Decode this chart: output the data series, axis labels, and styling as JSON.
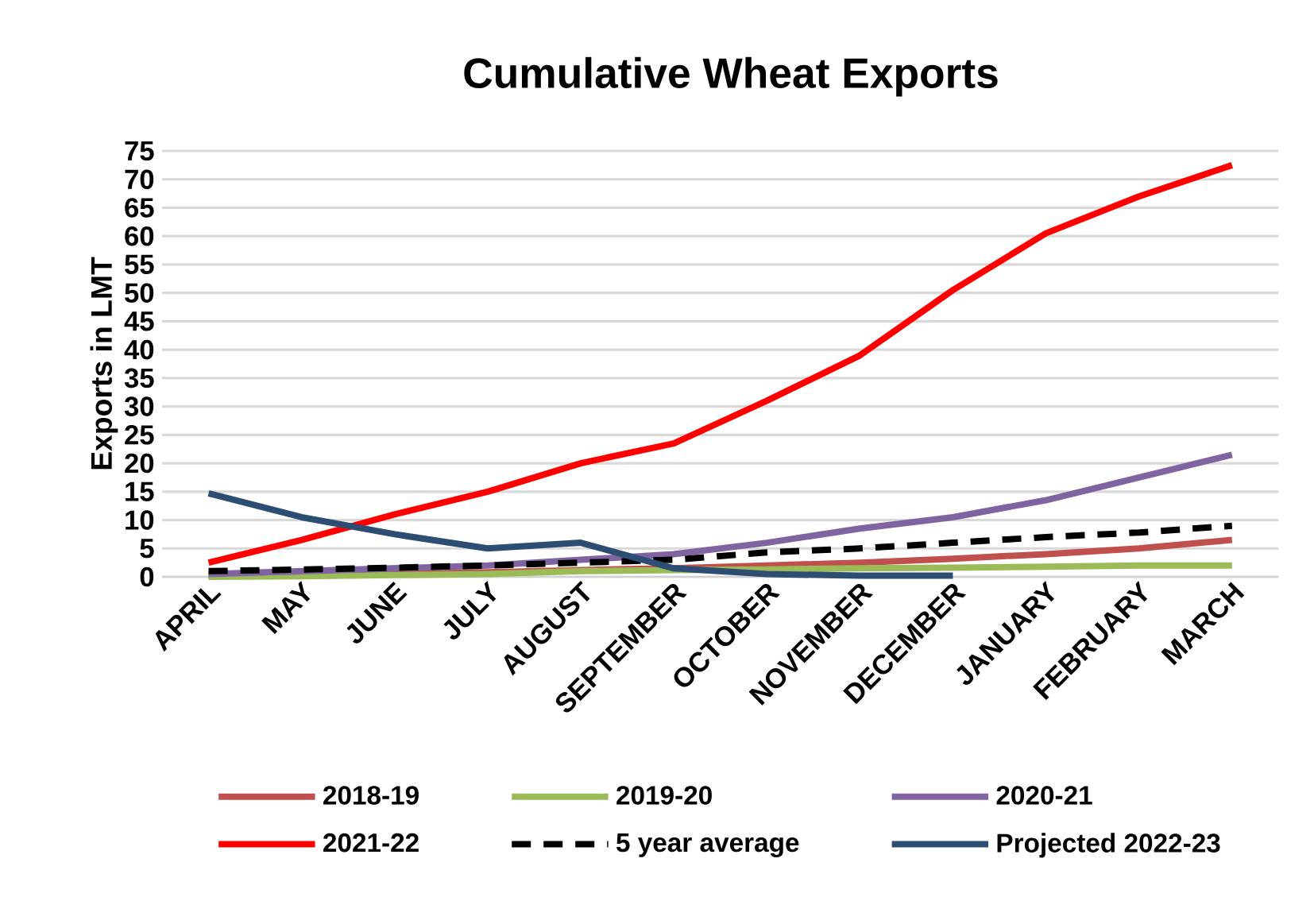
{
  "chart_data": {
    "type": "line",
    "title": "Cumulative Wheat Exports",
    "ylabel": "Exports in LMT",
    "categories": [
      "APRIL",
      "MAY",
      "JUNE",
      "JULY",
      "AUGUST",
      "SEPTEMBER",
      "OCTOBER",
      "NOVEMBER",
      "DECEMBER",
      "JANUARY",
      "FEBRUARY",
      "MARCH"
    ],
    "ylim": [
      0,
      75
    ],
    "yticks": [
      0,
      5,
      10,
      15,
      20,
      25,
      30,
      35,
      40,
      45,
      50,
      55,
      60,
      65,
      70,
      75
    ],
    "grid": "y",
    "legend": "bottom",
    "marker": "none",
    "series": [
      {
        "name": "2018-19",
        "color": "#c0504d",
        "values": [
          0.2,
          0.3,
          0.5,
          0.8,
          1.2,
          1.5,
          2,
          2.5,
          3.2,
          4,
          5,
          6.5
        ]
      },
      {
        "name": "2019-20",
        "color": "#9bbb59",
        "values": [
          0,
          0.1,
          0.3,
          0.5,
          1,
          1.2,
          1.3,
          1.5,
          1.6,
          1.8,
          2,
          2
        ]
      },
      {
        "name": "2020-21",
        "color": "#8064a2",
        "values": [
          0.5,
          1,
          1.5,
          2,
          3,
          4,
          6,
          8.5,
          10.5,
          13.5,
          17.5,
          21.5
        ]
      },
      {
        "name": "2021-22",
        "color": "#ff0000",
        "values": [
          2.5,
          6.5,
          11,
          15,
          20,
          23.5,
          31,
          39,
          50.5,
          60.5,
          67,
          72.5
        ]
      },
      {
        "name": "5 year average",
        "color": "#000000",
        "line_style": "dashed",
        "values": [
          1,
          1.3,
          1.6,
          2,
          2.5,
          3,
          4.3,
          5,
          6,
          7,
          7.8,
          9
        ]
      },
      {
        "name": "Projected 2022-23",
        "color": "#2e4d73",
        "values": [
          14.7,
          10.5,
          7.5,
          5,
          6,
          1.5,
          0.5,
          0.2,
          0.2,
          null,
          null,
          null
        ]
      }
    ]
  }
}
